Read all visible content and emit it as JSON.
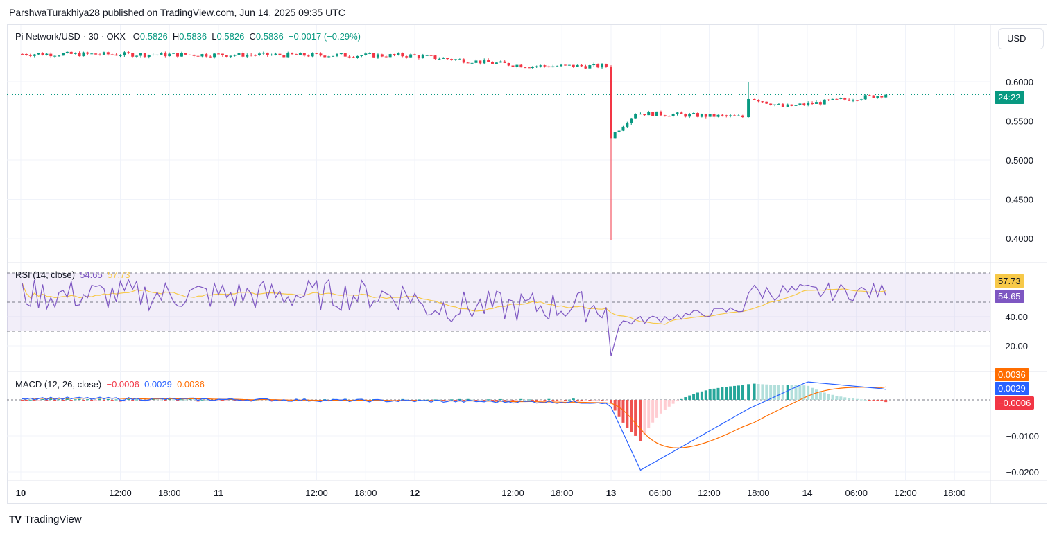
{
  "header": {
    "publisher_line": "ParshwaTurakhiya28 published on TradingView.com, Jun 14, 2025 09:35 UTC"
  },
  "legend": {
    "symbol": "Pi Network/USD · 30 · OKX",
    "o_label": "O",
    "o_value": "0.5826",
    "h_label": "H",
    "h_value": "0.5836",
    "l_label": "L",
    "l_value": "0.5826",
    "c_label": "C",
    "c_value": "0.5836",
    "change": "−0.0017 (−0.29%)"
  },
  "currency_button": "USD",
  "price_badge": {
    "text": "24:22",
    "color": "#089981"
  },
  "rsi_legend": {
    "name": "RSI (14, close)",
    "value": "54.65",
    "ma": "57.73"
  },
  "rsi_badges": {
    "ma": "57.73",
    "value": "54.65"
  },
  "macd_legend": {
    "name": "MACD (12, 26, close)",
    "hist": "−0.0006",
    "macd": "0.0029",
    "signal": "0.0036"
  },
  "macd_badges": {
    "signal": "0.0036",
    "macd": "0.0029",
    "hist": "−0.0006"
  },
  "brand": {
    "name": "TradingView"
  },
  "colors": {
    "up": "#089981",
    "down": "#f23645",
    "rsi": "#7e57c2",
    "rsi_ma": "#f7c948",
    "macd": "#2962ff",
    "signal": "#ff6d00",
    "hist_up": "#26a69a",
    "hist_up_light": "#b2dfdb",
    "hist_down": "#ef5350",
    "hist_down_light": "#ffcdd2"
  },
  "chart_data": [
    {
      "type": "candlestick",
      "title": "Pi Network/USD · 30 · OKX",
      "x_ticks": [
        "10",
        "12:00",
        "18:00",
        "11",
        "12:00",
        "18:00",
        "12",
        "12:00",
        "18:00",
        "13",
        "06:00",
        "12:00",
        "18:00",
        "14",
        "06:00",
        "12:00",
        "18:00"
      ],
      "y_ticks": [
        "0.6000",
        "0.5500",
        "0.5000",
        "0.4500",
        "0.4000"
      ],
      "ylim": [
        0.3975,
        0.6355
      ],
      "last_price": 0.5836,
      "series": [
        {
          "name": "price",
          "segments": [
            {
              "from_day": 0.0,
              "to_day": 2.0,
              "start": 0.6355,
              "end": 0.6335
            },
            {
              "from_day": 2.0,
              "to_day": 2.6,
              "start": 0.6335,
              "end": 0.62
            },
            {
              "from_day": 2.6,
              "to_day": 3.0,
              "start": 0.62,
              "end": 0.62
            },
            {
              "from_day": 3.0,
              "to_day": 3.02,
              "start": 0.62,
              "end": 0.53,
              "low": 0.3975
            },
            {
              "from_day": 3.02,
              "to_day": 3.15,
              "start": 0.53,
              "end": 0.56
            },
            {
              "from_day": 3.15,
              "to_day": 3.7,
              "start": 0.56,
              "end": 0.555
            },
            {
              "from_day": 3.7,
              "to_day": 3.73,
              "start": 0.555,
              "end": 0.58,
              "high": 0.6
            },
            {
              "from_day": 3.73,
              "to_day": 3.9,
              "start": 0.58,
              "end": 0.568
            },
            {
              "from_day": 3.9,
              "to_day": 4.42,
              "start": 0.568,
              "end": 0.5836
            }
          ]
        }
      ]
    },
    {
      "type": "line",
      "title": "RSI (14, close)",
      "y_ticks": [
        "40.00",
        "20.00"
      ],
      "ylim": [
        5,
        80
      ],
      "bands": [
        70,
        50,
        30
      ],
      "series": [
        {
          "name": "RSI",
          "last": 54.65
        },
        {
          "name": "RSI MA",
          "last": 57.73
        }
      ],
      "min_point": {
        "day": 3.0,
        "value": 13
      }
    },
    {
      "type": "line",
      "title": "MACD (12, 26, close)",
      "y_ticks": [
        "−0.0100",
        "−0.0200"
      ],
      "ylim": [
        -0.0205,
        0.0045
      ],
      "series": [
        {
          "name": "MACD",
          "last": 0.0029,
          "min": -0.0195
        },
        {
          "name": "Signal",
          "last": 0.0036,
          "min": -0.0165
        },
        {
          "name": "Histogram",
          "last": -0.0006
        }
      ]
    }
  ]
}
